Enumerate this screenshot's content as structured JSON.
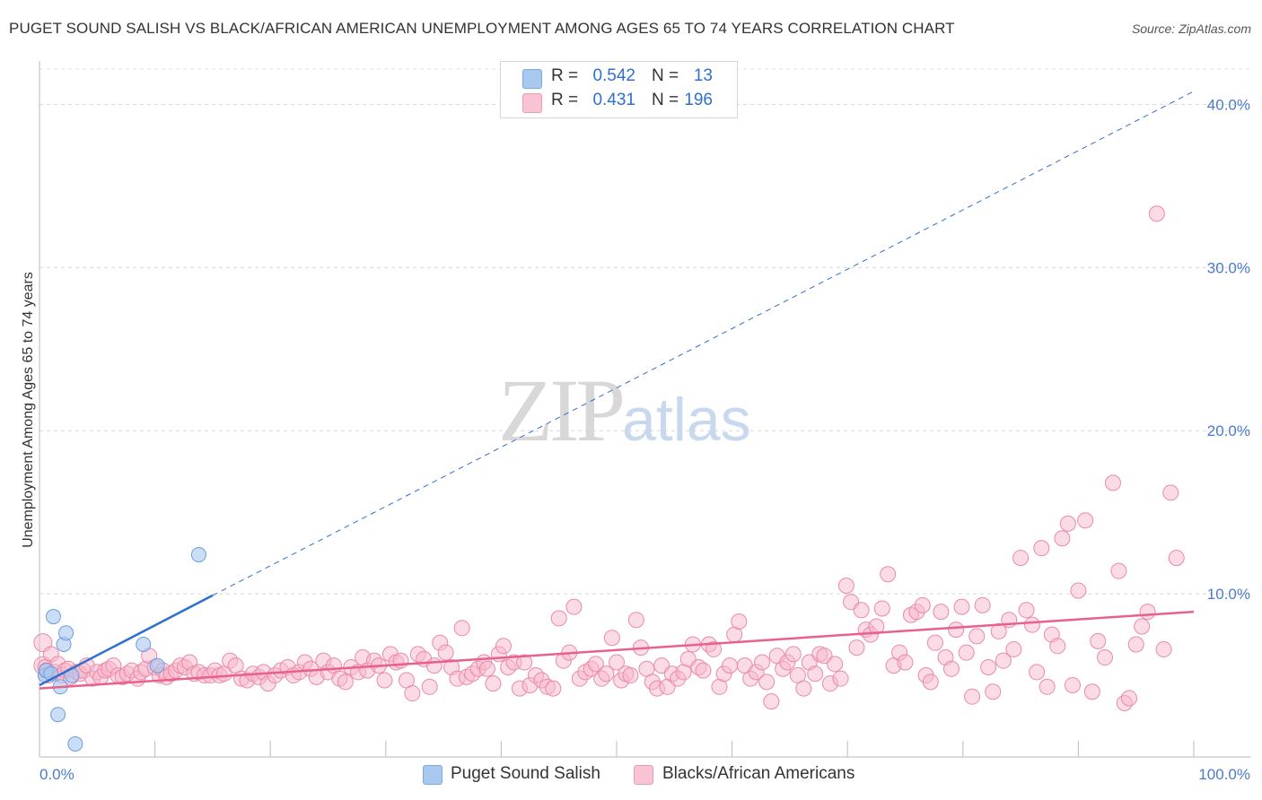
{
  "header": {
    "title": "PUGET SOUND SALISH VS BLACK/AFRICAN AMERICAN UNEMPLOYMENT AMONG AGES 65 TO 74 YEARS CORRELATION CHART",
    "source": "Source: ZipAtlas.com"
  },
  "watermark": {
    "zip": "ZIP",
    "atlas": "atlas"
  },
  "legend": {
    "r_label": "R =",
    "n_label": "N =",
    "rows": [
      {
        "r": "0.542",
        "n": "13",
        "color": "#a8c8f0"
      },
      {
        "r": "0.431",
        "n": "196",
        "color": "#f8b8cc"
      }
    ]
  },
  "bottom_legend": {
    "items": [
      {
        "label": "Puget Sound Salish",
        "color": "#a8c8f0"
      },
      {
        "label": "Blacks/African Americans",
        "color": "#f8b8cc"
      }
    ]
  },
  "chart_data": {
    "type": "scatter",
    "title": "PUGET SOUND SALISH VS BLACK/AFRICAN AMERICAN UNEMPLOYMENT AMONG AGES 65 TO 74 YEARS CORRELATION CHART",
    "ylabel": "Unemployment Among Ages 65 to 74 years",
    "xlabel": "",
    "xlim": [
      0,
      100
    ],
    "ylim": [
      0,
      42
    ],
    "x_tick_labels": [
      {
        "value": 0,
        "label": "0.0%"
      },
      {
        "value": 100,
        "label": "100.0%"
      }
    ],
    "y_ticks": [
      {
        "value": 10,
        "label": "10.0%"
      },
      {
        "value": 20,
        "label": "20.0%"
      },
      {
        "value": 30,
        "label": "30.0%"
      },
      {
        "value": 40,
        "label": "40.0%"
      }
    ],
    "grid": "horizontal dashed",
    "colors": {
      "salish_fill": "#a8c8f0",
      "salish_stroke": "#6a9ee0",
      "salish_line": "#2f6fce",
      "black_fill": "#f8b8cc",
      "black_stroke": "#ea8aa8",
      "black_line": "#e8608c",
      "tick_text": "#4a7bd0"
    },
    "series": [
      {
        "name": "Puget Sound Salish",
        "points": [
          [
            0.5,
            5.0
          ],
          [
            0.6,
            5.3
          ],
          [
            1.0,
            5.1
          ],
          [
            1.2,
            8.6
          ],
          [
            1.6,
            2.6
          ],
          [
            1.8,
            4.3
          ],
          [
            2.1,
            6.9
          ],
          [
            2.3,
            7.6
          ],
          [
            2.8,
            5.0
          ],
          [
            3.1,
            0.8
          ],
          [
            9.0,
            6.9
          ],
          [
            10.2,
            5.6
          ],
          [
            13.8,
            12.4
          ]
        ],
        "trend": {
          "x0": 0,
          "y0": 4.4,
          "x1": 15,
          "y1": 9.9
        },
        "trend_extension": {
          "x0": 15,
          "y0": 9.9,
          "x1": 100,
          "y1": 40.8
        }
      },
      {
        "name": "Blacks/African Americans",
        "points": [
          [
            0.3,
            7.0
          ],
          [
            0.3,
            5.6
          ],
          [
            0.5,
            5.5
          ],
          [
            0.6,
            5.3
          ],
          [
            0.8,
            5.0
          ],
          [
            1.0,
            6.3
          ],
          [
            1.3,
            5.2
          ],
          [
            1.6,
            5.7
          ],
          [
            1.9,
            5.0
          ],
          [
            2.2,
            5.3
          ],
          [
            2.5,
            5.4
          ],
          [
            2.7,
            4.9
          ],
          [
            3.2,
            5.2
          ],
          [
            3.5,
            5.1
          ],
          [
            3.8,
            5.3
          ],
          [
            4.1,
            5.6
          ],
          [
            4.6,
            4.8
          ],
          [
            5.0,
            5.2
          ],
          [
            5.3,
            4.9
          ],
          [
            5.7,
            5.3
          ],
          [
            6.0,
            5.4
          ],
          [
            6.4,
            5.6
          ],
          [
            6.8,
            5.0
          ],
          [
            7.2,
            4.9
          ],
          [
            7.6,
            5.1
          ],
          [
            8.0,
            5.3
          ],
          [
            8.5,
            4.8
          ],
          [
            8.8,
            5.2
          ],
          [
            9.2,
            5.4
          ],
          [
            9.5,
            6.2
          ],
          [
            10.0,
            5.5
          ],
          [
            10.4,
            5.0
          ],
          [
            10.7,
            5.3
          ],
          [
            11.0,
            4.9
          ],
          [
            11.4,
            5.1
          ],
          [
            11.8,
            5.3
          ],
          [
            12.2,
            5.6
          ],
          [
            12.6,
            5.5
          ],
          [
            13.0,
            5.8
          ],
          [
            13.4,
            5.1
          ],
          [
            13.8,
            5.2
          ],
          [
            14.3,
            5.0
          ],
          [
            14.8,
            5.0
          ],
          [
            15.2,
            5.3
          ],
          [
            15.6,
            5.0
          ],
          [
            16.0,
            5.1
          ],
          [
            16.5,
            5.9
          ],
          [
            17.0,
            5.6
          ],
          [
            17.5,
            4.8
          ],
          [
            18.0,
            4.7
          ],
          [
            18.5,
            5.1
          ],
          [
            19.0,
            4.9
          ],
          [
            19.4,
            5.2
          ],
          [
            19.8,
            4.5
          ],
          [
            20.4,
            5.0
          ],
          [
            20.9,
            5.3
          ],
          [
            21.5,
            5.5
          ],
          [
            22.0,
            5.0
          ],
          [
            22.5,
            5.2
          ],
          [
            23.0,
            5.8
          ],
          [
            23.5,
            5.4
          ],
          [
            24.0,
            4.9
          ],
          [
            24.6,
            5.9
          ],
          [
            25.0,
            5.2
          ],
          [
            25.5,
            5.6
          ],
          [
            26.0,
            4.8
          ],
          [
            26.5,
            4.6
          ],
          [
            27.0,
            5.5
          ],
          [
            27.6,
            5.2
          ],
          [
            28.0,
            6.1
          ],
          [
            28.4,
            5.3
          ],
          [
            29.0,
            5.9
          ],
          [
            29.4,
            5.6
          ],
          [
            29.9,
            4.7
          ],
          [
            30.4,
            6.3
          ],
          [
            30.9,
            5.8
          ],
          [
            31.3,
            5.9
          ],
          [
            31.8,
            4.7
          ],
          [
            32.3,
            3.9
          ],
          [
            32.8,
            6.3
          ],
          [
            33.3,
            6.0
          ],
          [
            33.8,
            4.3
          ],
          [
            34.2,
            5.6
          ],
          [
            34.7,
            7.0
          ],
          [
            35.2,
            6.4
          ],
          [
            35.7,
            5.5
          ],
          [
            36.2,
            4.8
          ],
          [
            36.6,
            7.9
          ],
          [
            37.0,
            4.9
          ],
          [
            37.5,
            5.1
          ],
          [
            38.0,
            5.4
          ],
          [
            38.5,
            5.8
          ],
          [
            38.8,
            5.4
          ],
          [
            39.3,
            4.5
          ],
          [
            39.8,
            6.3
          ],
          [
            40.2,
            6.8
          ],
          [
            40.6,
            5.5
          ],
          [
            41.1,
            5.8
          ],
          [
            41.6,
            4.2
          ],
          [
            42.0,
            5.8
          ],
          [
            42.5,
            4.4
          ],
          [
            43.0,
            5.0
          ],
          [
            43.5,
            4.7
          ],
          [
            44.0,
            4.3
          ],
          [
            44.5,
            4.2
          ],
          [
            45.0,
            8.5
          ],
          [
            45.4,
            5.9
          ],
          [
            45.9,
            6.4
          ],
          [
            46.3,
            9.2
          ],
          [
            46.8,
            4.8
          ],
          [
            47.3,
            5.2
          ],
          [
            47.8,
            5.4
          ],
          [
            48.2,
            5.7
          ],
          [
            48.7,
            4.8
          ],
          [
            49.1,
            5.1
          ],
          [
            49.6,
            7.3
          ],
          [
            50.0,
            5.8
          ],
          [
            50.4,
            4.7
          ],
          [
            50.8,
            5.1
          ],
          [
            51.2,
            5.0
          ],
          [
            51.7,
            8.4
          ],
          [
            52.1,
            6.7
          ],
          [
            52.6,
            5.4
          ],
          [
            53.1,
            4.6
          ],
          [
            53.5,
            4.2
          ],
          [
            53.9,
            5.6
          ],
          [
            54.4,
            4.3
          ],
          [
            54.8,
            5.1
          ],
          [
            55.3,
            4.8
          ],
          [
            55.8,
            5.2
          ],
          [
            56.2,
            6.0
          ],
          [
            56.6,
            6.9
          ],
          [
            57.1,
            5.5
          ],
          [
            57.5,
            5.3
          ],
          [
            58.0,
            6.9
          ],
          [
            58.4,
            6.6
          ],
          [
            58.9,
            4.3
          ],
          [
            59.3,
            5.1
          ],
          [
            59.8,
            5.6
          ],
          [
            60.2,
            7.5
          ],
          [
            60.6,
            8.3
          ],
          [
            61.1,
            5.6
          ],
          [
            61.6,
            4.8
          ],
          [
            62.1,
            5.2
          ],
          [
            62.6,
            5.8
          ],
          [
            63.0,
            4.6
          ],
          [
            63.4,
            3.4
          ],
          [
            63.9,
            6.2
          ],
          [
            64.4,
            5.4
          ],
          [
            64.8,
            5.8
          ],
          [
            65.3,
            6.3
          ],
          [
            65.7,
            5.0
          ],
          [
            66.2,
            4.2
          ],
          [
            66.7,
            5.8
          ],
          [
            67.2,
            5.1
          ],
          [
            67.6,
            6.3
          ],
          [
            68.0,
            6.2
          ],
          [
            68.5,
            4.5
          ],
          [
            68.9,
            5.7
          ],
          [
            69.4,
            4.8
          ],
          [
            69.9,
            10.5
          ],
          [
            70.3,
            9.5
          ],
          [
            70.8,
            6.7
          ],
          [
            71.2,
            9.0
          ],
          [
            71.6,
            7.8
          ],
          [
            72.0,
            7.5
          ],
          [
            72.5,
            8.0
          ],
          [
            73.0,
            9.1
          ],
          [
            73.5,
            11.2
          ],
          [
            74.0,
            5.6
          ],
          [
            74.5,
            6.4
          ],
          [
            75.0,
            5.8
          ],
          [
            75.5,
            8.7
          ],
          [
            76.0,
            8.9
          ],
          [
            76.5,
            9.3
          ],
          [
            76.8,
            5.0
          ],
          [
            77.2,
            4.6
          ],
          [
            77.6,
            7.0
          ],
          [
            78.1,
            8.9
          ],
          [
            78.5,
            6.1
          ],
          [
            79.0,
            5.4
          ],
          [
            79.4,
            7.8
          ],
          [
            79.9,
            9.2
          ],
          [
            80.3,
            6.4
          ],
          [
            80.8,
            3.7
          ],
          [
            81.2,
            7.4
          ],
          [
            81.7,
            9.3
          ],
          [
            82.2,
            5.5
          ],
          [
            82.6,
            4.0
          ],
          [
            83.1,
            7.7
          ],
          [
            83.5,
            5.9
          ],
          [
            84.0,
            8.4
          ],
          [
            84.4,
            6.6
          ],
          [
            85.0,
            12.2
          ],
          [
            85.5,
            9.0
          ],
          [
            86.0,
            8.1
          ],
          [
            86.4,
            5.2
          ],
          [
            86.8,
            12.8
          ],
          [
            87.3,
            4.3
          ],
          [
            87.7,
            7.5
          ],
          [
            88.2,
            6.8
          ],
          [
            88.6,
            13.4
          ],
          [
            89.1,
            14.3
          ],
          [
            89.5,
            4.4
          ],
          [
            90.0,
            10.2
          ],
          [
            90.6,
            14.5
          ],
          [
            91.2,
            4.0
          ],
          [
            91.7,
            7.1
          ],
          [
            92.3,
            6.1
          ],
          [
            93.0,
            16.8
          ],
          [
            93.5,
            11.4
          ],
          [
            94.0,
            3.3
          ],
          [
            94.4,
            3.6
          ],
          [
            95.0,
            6.9
          ],
          [
            95.5,
            8.0
          ],
          [
            96.0,
            8.9
          ],
          [
            96.8,
            33.3
          ],
          [
            97.4,
            6.6
          ],
          [
            98.0,
            16.2
          ],
          [
            98.5,
            12.2
          ]
        ],
        "trend": {
          "x0": 0,
          "y0": 4.2,
          "x1": 100,
          "y1": 8.9
        }
      }
    ]
  }
}
